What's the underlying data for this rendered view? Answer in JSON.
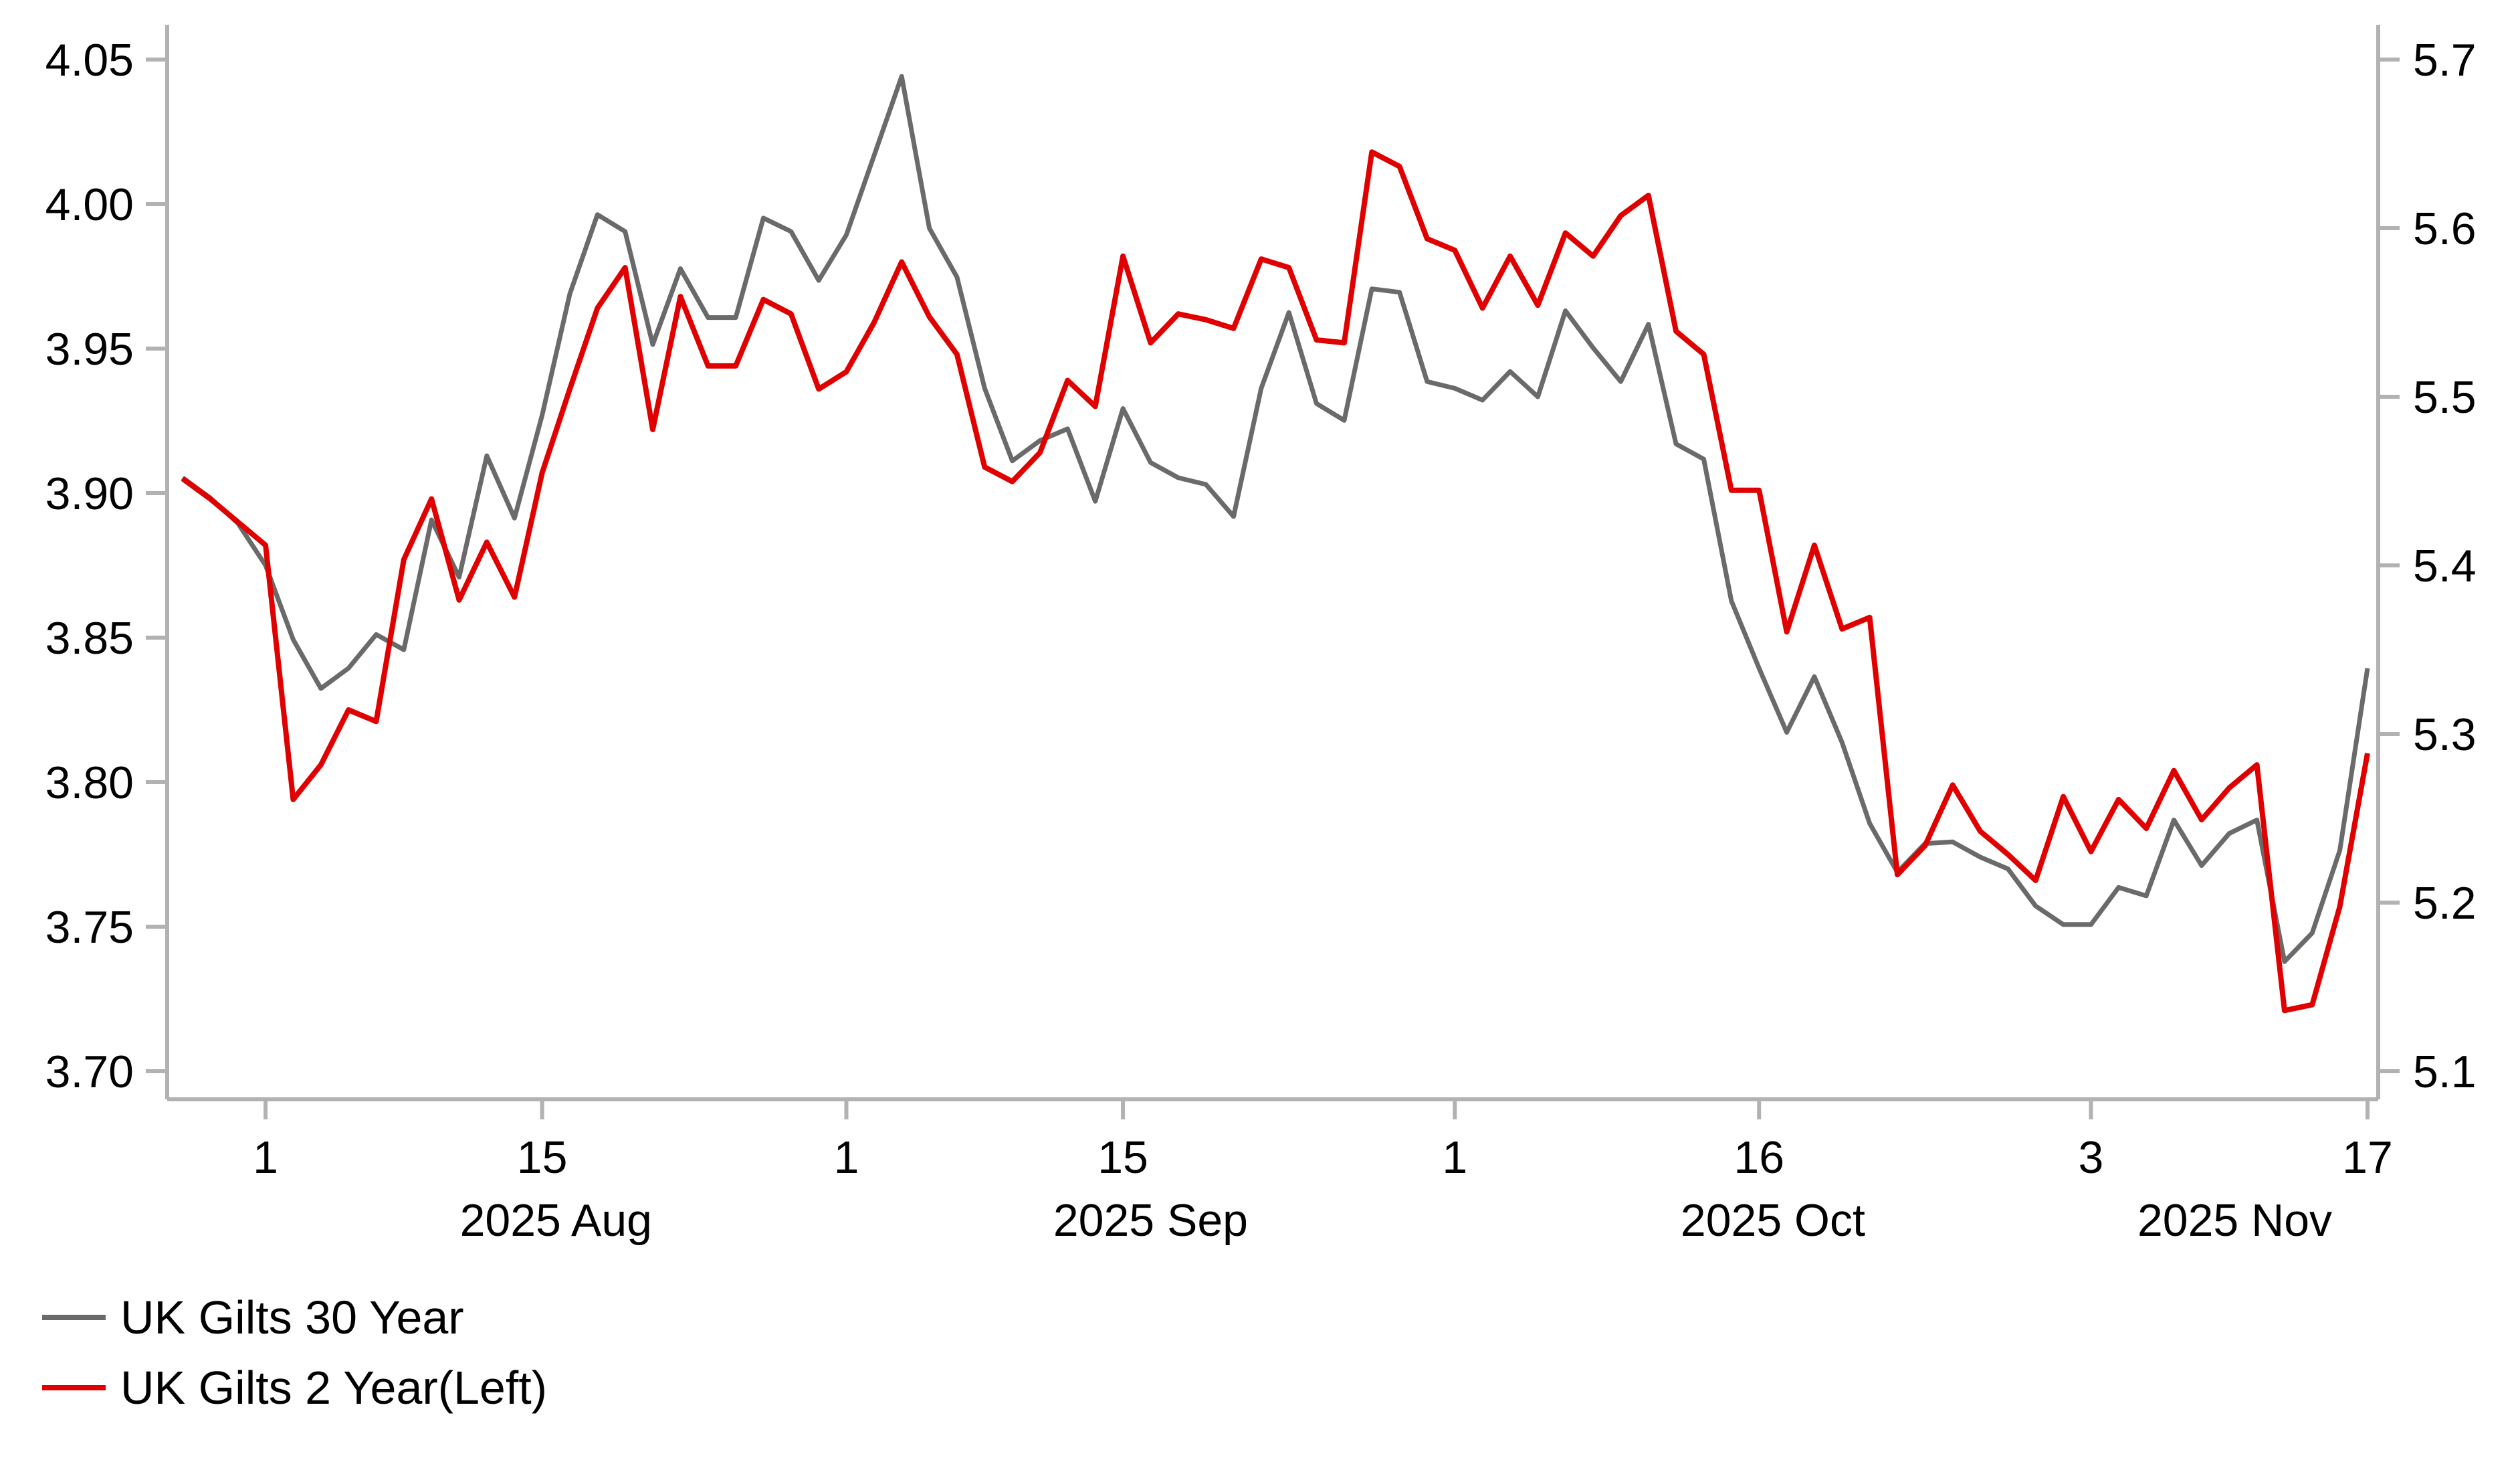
{
  "page": {
    "background": "#ffffff"
  },
  "colors": {
    "axis": "#b2b2b2",
    "text": "#000000"
  },
  "legend": {
    "items": [
      {
        "label": "UK Gilts 30 Year",
        "color": "#6a6a6a"
      },
      {
        "label": "UK Gilts 2 Year(Left)",
        "color": "#e10000"
      }
    ]
  },
  "chart_data": {
    "type": "line",
    "title": "",
    "xlabel": "",
    "ylabel_left": "",
    "ylabel_right": "",
    "grid": false,
    "legend_position": "bottom-left",
    "x": [
      "2025-07-29",
      "2025-07-30",
      "2025-07-31",
      "2025-08-01",
      "2025-08-04",
      "2025-08-05",
      "2025-08-06",
      "2025-08-07",
      "2025-08-08",
      "2025-08-11",
      "2025-08-12",
      "2025-08-13",
      "2025-08-14",
      "2025-08-15",
      "2025-08-18",
      "2025-08-19",
      "2025-08-20",
      "2025-08-21",
      "2025-08-22",
      "2025-08-25",
      "2025-08-26",
      "2025-08-27",
      "2025-08-28",
      "2025-08-29",
      "2025-09-01",
      "2025-09-02",
      "2025-09-03",
      "2025-09-04",
      "2025-09-05",
      "2025-09-08",
      "2025-09-09",
      "2025-09-10",
      "2025-09-11",
      "2025-09-12",
      "2025-09-15",
      "2025-09-16",
      "2025-09-17",
      "2025-09-18",
      "2025-09-19",
      "2025-09-22",
      "2025-09-23",
      "2025-09-24",
      "2025-09-25",
      "2025-09-26",
      "2025-09-29",
      "2025-09-30",
      "2025-10-01",
      "2025-10-02",
      "2025-10-03",
      "2025-10-06",
      "2025-10-07",
      "2025-10-08",
      "2025-10-09",
      "2025-10-10",
      "2025-10-13",
      "2025-10-14",
      "2025-10-15",
      "2025-10-16",
      "2025-10-17",
      "2025-10-20",
      "2025-10-21",
      "2025-10-22",
      "2025-10-23",
      "2025-10-24",
      "2025-10-27",
      "2025-10-28",
      "2025-10-29",
      "2025-10-30",
      "2025-10-31",
      "2025-11-03",
      "2025-11-04",
      "2025-11-05",
      "2025-11-06",
      "2025-11-07",
      "2025-11-10",
      "2025-11-11",
      "2025-11-12",
      "2025-11-13",
      "2025-11-14",
      "2025-11-17"
    ],
    "x_ticks": [
      {
        "label": "1",
        "index": 3
      },
      {
        "label": "15",
        "index": 13
      },
      {
        "label": "1",
        "index": 24
      },
      {
        "label": "15",
        "index": 34
      },
      {
        "label": "1",
        "index": 46
      },
      {
        "label": "16",
        "index": 57
      },
      {
        "label": "3",
        "index": 69
      },
      {
        "label": "17",
        "index": 79
      }
    ],
    "month_labels": [
      {
        "label": "2025 Aug",
        "center_index": 13.5
      },
      {
        "label": "2025 Sep",
        "center_index": 35.0
      },
      {
        "label": "2025 Oct",
        "center_index": 57.5
      },
      {
        "label": "2025 Nov",
        "center_index": 74.2
      }
    ],
    "left_axis": {
      "range": [
        3.69,
        4.062
      ],
      "ticks": [
        {
          "label": "4.05",
          "value": 4.05
        },
        {
          "label": "4.00",
          "value": 4.0
        },
        {
          "label": "3.95",
          "value": 3.95
        },
        {
          "label": "3.90",
          "value": 3.9
        },
        {
          "label": "3.85",
          "value": 3.85
        },
        {
          "label": "3.80",
          "value": 3.8
        },
        {
          "label": "3.75",
          "value": 3.75
        },
        {
          "label": "3.70",
          "value": 3.7
        }
      ]
    },
    "right_axis": {
      "range": [
        5.083,
        5.721
      ],
      "ticks": [
        {
          "label": "5.7",
          "value": 5.7
        },
        {
          "label": "5.6",
          "value": 5.6
        },
        {
          "label": "5.5",
          "value": 5.5
        },
        {
          "label": "5.4",
          "value": 5.4
        },
        {
          "label": "5.3",
          "value": 5.3
        },
        {
          "label": "5.2",
          "value": 5.2
        },
        {
          "label": "5.1",
          "value": 5.1
        }
      ]
    },
    "series": [
      {
        "name": "UK Gilts 30 Year",
        "axis": "right",
        "color": "#6a6a6a",
        "stroke_width": 7,
        "values": [
          5.452,
          5.44,
          5.425,
          5.4,
          5.356,
          5.327,
          5.339,
          5.359,
          5.35,
          5.427,
          5.393,
          5.465,
          5.428,
          5.489,
          5.561,
          5.608,
          5.598,
          5.531,
          5.576,
          5.547,
          5.547,
          5.606,
          5.598,
          5.569,
          5.596,
          5.643,
          5.69,
          5.6,
          5.571,
          5.505,
          5.462,
          5.474,
          5.481,
          5.438,
          5.493,
          5.461,
          5.452,
          5.448,
          5.429,
          5.505,
          5.55,
          5.496,
          5.486,
          5.564,
          5.562,
          5.509,
          5.505,
          5.498,
          5.515,
          5.5,
          5.551,
          5.529,
          5.509,
          5.543,
          5.472,
          5.463,
          5.379,
          5.339,
          5.301,
          5.334,
          5.295,
          5.247,
          5.218,
          5.235,
          5.236,
          5.227,
          5.22,
          5.198,
          5.187,
          5.187,
          5.209,
          5.204,
          5.249,
          5.222,
          5.241,
          5.249,
          5.165,
          5.182,
          5.231,
          5.339
        ]
      },
      {
        "name": "UK Gilts 2 Year(Left)",
        "axis": "left",
        "color": "#e10000",
        "stroke_width": 8,
        "values": [
          3.905,
          3.898,
          3.89,
          3.882,
          3.794,
          3.806,
          3.825,
          3.821,
          3.877,
          3.898,
          3.863,
          3.883,
          3.864,
          3.907,
          3.936,
          3.964,
          3.978,
          3.922,
          3.968,
          3.944,
          3.944,
          3.967,
          3.962,
          3.936,
          3.942,
          3.959,
          3.98,
          3.961,
          3.948,
          3.909,
          3.904,
          3.914,
          3.939,
          3.93,
          3.982,
          3.952,
          3.962,
          3.96,
          3.957,
          3.981,
          3.978,
          3.953,
          3.952,
          4.018,
          4.013,
          3.988,
          3.984,
          3.964,
          3.982,
          3.965,
          3.99,
          3.982,
          3.996,
          4.003,
          3.956,
          3.948,
          3.901,
          3.901,
          3.852,
          3.882,
          3.853,
          3.857,
          3.768,
          3.778,
          3.799,
          3.783,
          3.775,
          3.766,
          3.795,
          3.776,
          3.794,
          3.784,
          3.804,
          3.787,
          3.798,
          3.806,
          3.721,
          3.723,
          3.757,
          3.81
        ]
      }
    ]
  }
}
